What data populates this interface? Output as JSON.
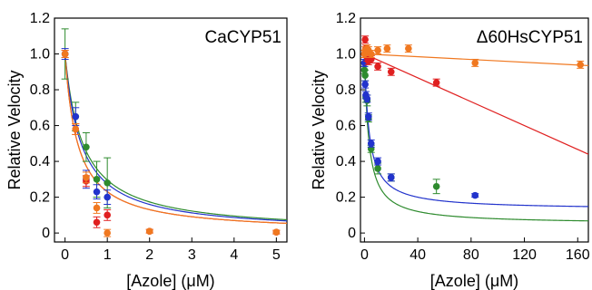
{
  "chart_data": [
    {
      "type": "scatter",
      "title": "CaCYP51",
      "xlabel": "[Azole] (μM)",
      "ylabel": "Relative Velocity",
      "xlim": [
        -0.25,
        5.25
      ],
      "ylim": [
        -0.05,
        1.2
      ],
      "xticks": [
        0,
        1,
        2,
        3,
        4,
        5
      ],
      "xtick_labels": [
        "0",
        "1",
        "2",
        "3",
        "4",
        "5"
      ],
      "yticks": [
        0,
        0.2,
        0.4,
        0.6,
        0.8,
        1.0,
        1.2
      ],
      "ytick_labels": [
        "0",
        "0.2",
        "0.4",
        "0.6",
        "0.8",
        "1.0",
        "1.2"
      ],
      "grid": false,
      "series": [
        {
          "color": "#2e8b2e",
          "x": [
            0,
            0.25,
            0.5,
            0.75,
            1.0
          ],
          "y": [
            1.0,
            0.65,
            0.48,
            0.3,
            0.28
          ],
          "err": [
            0.14,
            0.08,
            0.08,
            0.1,
            0.14
          ],
          "fit_ic50": 0.42
        },
        {
          "color": "#2233cc",
          "x": [
            0,
            0.25,
            0.5,
            0.75,
            1.0
          ],
          "y": [
            1.0,
            0.65,
            0.3,
            0.23,
            0.2
          ],
          "err": [
            0.03,
            0.05,
            0.05,
            0.04,
            0.04
          ],
          "fit_ic50": 0.38
        },
        {
          "color": "#e02020",
          "x": [
            0,
            0.25,
            0.5,
            0.75,
            1.0,
            2.0,
            5.0
          ],
          "y": [
            1.0,
            0.58,
            0.29,
            0.06,
            0.1,
            0.01,
            0.005
          ],
          "err": [
            0.02,
            0.03,
            0.03,
            0.03,
            0.03,
            0.01,
            0.01
          ],
          "fit_ic50": 0.3
        },
        {
          "color": "#f07820",
          "x": [
            0,
            0.25,
            0.5,
            0.75,
            1.0,
            2.0,
            5.0
          ],
          "y": [
            1.0,
            0.58,
            0.31,
            0.14,
            0.0,
            0.01,
            0.005
          ],
          "err": [
            0.02,
            0.03,
            0.03,
            0.03,
            0.02,
            0.01,
            0.01
          ],
          "fit_ic50": 0.3
        }
      ]
    },
    {
      "type": "scatter",
      "title": "Δ60HsCYP51",
      "xlabel": "[Azole] (μM)",
      "ylabel": "Relative Velocity",
      "xlim": [
        -3,
        168
      ],
      "ylim": [
        -0.05,
        1.2
      ],
      "xticks": [
        0,
        40,
        80,
        120,
        160
      ],
      "xtick_labels": [
        "0",
        "40",
        "80",
        "120",
        "160"
      ],
      "yticks": [
        0,
        0.2,
        0.4,
        0.6,
        0.8,
        1.0,
        1.2
      ],
      "ytick_labels": [
        "0",
        "0.2",
        "0.4",
        "0.6",
        "0.8",
        "1.0",
        "1.2"
      ],
      "grid": false,
      "series": [
        {
          "color": "#2e8b2e",
          "x": [
            0,
            0.5,
            1,
            2,
            3,
            5,
            10,
            20,
            54
          ],
          "y": [
            0.91,
            0.88,
            0.76,
            0.74,
            0.64,
            0.47,
            0.36,
            0.31,
            0.26
          ],
          "err": [
            0.02,
            0.03,
            0.03,
            0.03,
            0.02,
            0.02,
            0.03,
            0.02,
            0.04
          ],
          "fit": {
            "min": 0.05,
            "ic50": 3.2
          }
        },
        {
          "color": "#2233cc",
          "x": [
            0,
            0.5,
            1,
            2,
            3,
            5,
            10,
            20,
            83
          ],
          "y": [
            0.95,
            0.83,
            0.77,
            0.75,
            0.65,
            0.5,
            0.4,
            0.31,
            0.21
          ],
          "err": [
            0.02,
            0.02,
            0.02,
            0.02,
            0.02,
            0.02,
            0.02,
            0.02,
            0.01
          ],
          "fit": {
            "min": 0.13,
            "ic50": 3.5
          }
        },
        {
          "color": "#e02020",
          "x": [
            0,
            0.5,
            1,
            2,
            3,
            5,
            10,
            20,
            54
          ],
          "y": [
            1.0,
            1.08,
            1.03,
            0.98,
            0.96,
            0.97,
            0.93,
            0.9,
            0.84
          ],
          "err": [
            0.02,
            0.02,
            0.02,
            0.02,
            0.02,
            0.02,
            0.02,
            0.02,
            0.02
          ],
          "fit_line": [
            [
              0,
              1.0
            ],
            [
              168,
              0.44
            ]
          ]
        },
        {
          "color": "#f07820",
          "x": [
            0,
            0.5,
            1,
            2,
            3,
            5,
            10,
            17,
            33,
            83,
            162
          ],
          "y": [
            1.0,
            1.02,
            1.01,
            1.03,
            1.02,
            1.0,
            1.02,
            1.03,
            1.03,
            0.95,
            0.94
          ],
          "err": [
            0.02,
            0.02,
            0.02,
            0.02,
            0.02,
            0.02,
            0.02,
            0.02,
            0.02,
            0.02,
            0.02
          ],
          "fit_line": [
            [
              0,
              1.0
            ],
            [
              168,
              0.935
            ]
          ]
        }
      ]
    }
  ]
}
